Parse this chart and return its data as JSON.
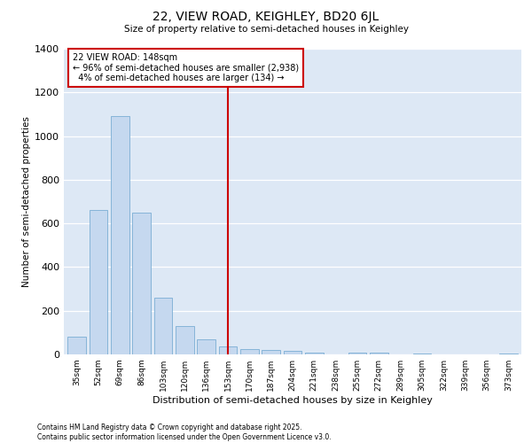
{
  "title1": "22, VIEW ROAD, KEIGHLEY, BD20 6JL",
  "title2": "Size of property relative to semi-detached houses in Keighley",
  "xlabel": "Distribution of semi-detached houses by size in Keighley",
  "ylabel": "Number of semi-detached properties",
  "categories": [
    "35sqm",
    "52sqm",
    "69sqm",
    "86sqm",
    "103sqm",
    "120sqm",
    "136sqm",
    "153sqm",
    "170sqm",
    "187sqm",
    "204sqm",
    "221sqm",
    "238sqm",
    "255sqm",
    "272sqm",
    "289sqm",
    "305sqm",
    "322sqm",
    "339sqm",
    "356sqm",
    "373sqm"
  ],
  "values": [
    80,
    660,
    1090,
    650,
    260,
    130,
    70,
    35,
    25,
    20,
    15,
    10,
    0,
    10,
    10,
    0,
    5,
    0,
    0,
    0,
    5
  ],
  "bar_color": "#c5d8ef",
  "bar_edge_color": "#7aadd4",
  "vline_x": 7.0,
  "vline_label": "22 VIEW ROAD: 148sqm",
  "pct_smaller": 96,
  "count_smaller": 2938,
  "pct_larger": 4,
  "count_larger": 134,
  "annotation_box_edge": "#cc0000",
  "vline_color": "#cc0000",
  "ylim": [
    0,
    1400
  ],
  "background_color": "#dde8f5",
  "footer1": "Contains HM Land Registry data © Crown copyright and database right 2025.",
  "footer2": "Contains public sector information licensed under the Open Government Licence v3.0."
}
